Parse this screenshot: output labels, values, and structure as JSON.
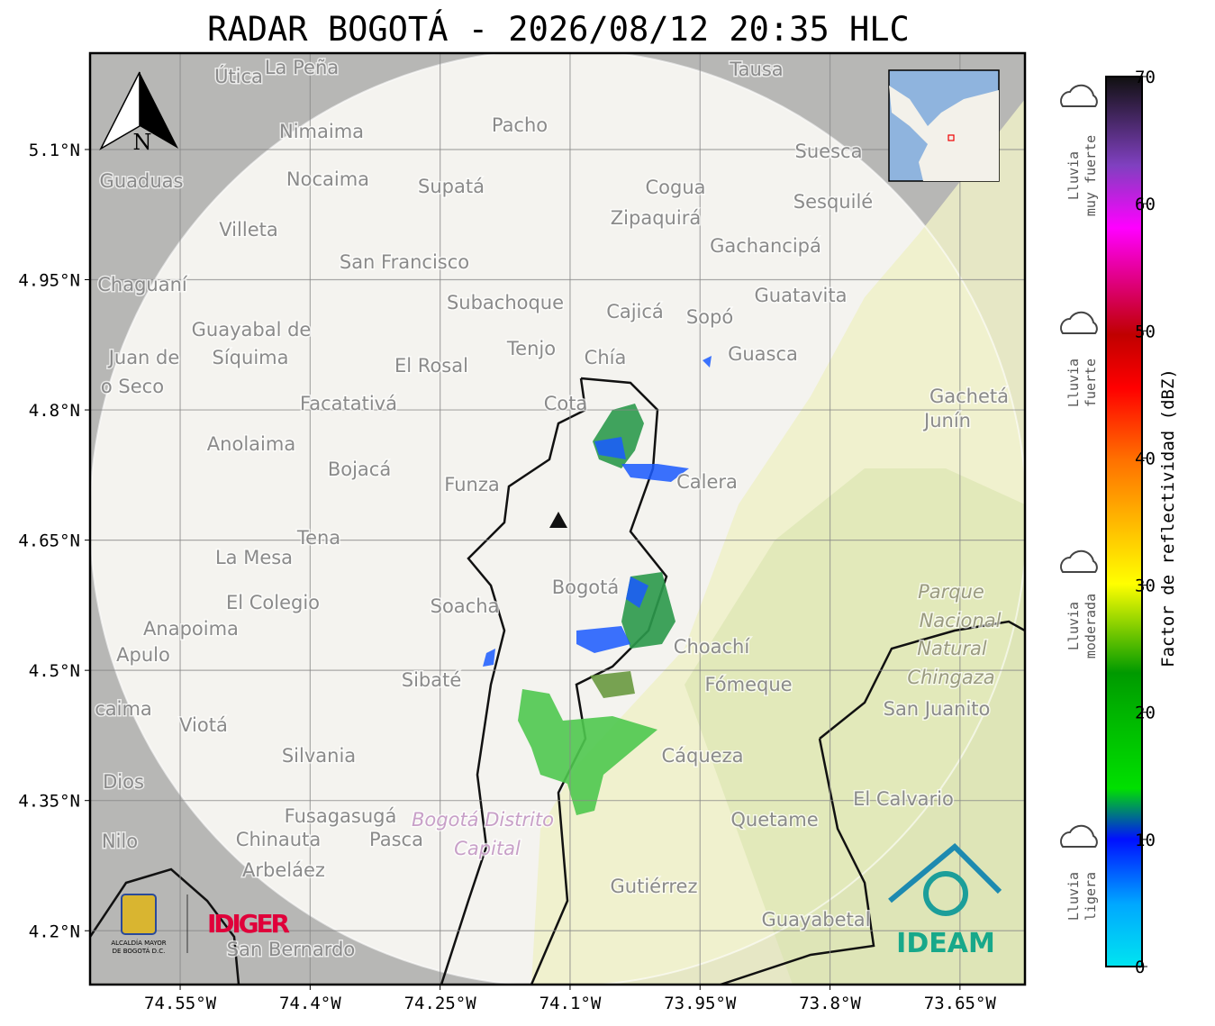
{
  "title": "RADAR BOGOTÁ - 2026/08/12 20:35 HLC",
  "map": {
    "xlim": [
      -74.654,
      -73.575
    ],
    "ylim": [
      4.138,
      5.211
    ],
    "xticks": [
      {
        "value": -74.55,
        "label": "74.55°W"
      },
      {
        "value": -74.4,
        "label": "74.4°W"
      },
      {
        "value": -74.25,
        "label": "74.25°W"
      },
      {
        "value": -74.1,
        "label": "74.1°W"
      },
      {
        "value": -73.95,
        "label": "73.95°W"
      },
      {
        "value": -73.8,
        "label": "73.8°W"
      },
      {
        "value": -73.65,
        "label": "73.65°W"
      }
    ],
    "yticks": [
      {
        "value": 5.1,
        "label": "5.1°N"
      },
      {
        "value": 4.95,
        "label": "4.95°N"
      },
      {
        "value": 4.8,
        "label": "4.8°N"
      },
      {
        "value": 4.65,
        "label": "4.65°N"
      },
      {
        "value": 4.5,
        "label": "4.5°N"
      },
      {
        "value": 4.35,
        "label": "4.35°N"
      },
      {
        "value": 4.2,
        "label": "4.2°N"
      }
    ],
    "grid": true,
    "places": [
      "Útica",
      "La Peña",
      "Tausa",
      "Pacho",
      "Nimaima",
      "Guaduas",
      "Nocaima",
      "Supatá",
      "Cogua",
      "Suesca",
      "Sesquilé",
      "Zipaquirá",
      "Villeta",
      "Gachancipá",
      "San Francisco",
      "Chaguaní",
      "Guatavita",
      "Subachoque",
      "Cajicá",
      "Sopó",
      "Guayabal de",
      "Síquima",
      "Juan de",
      "o Seco",
      "Tenjo",
      "Chía",
      "El Rosal",
      "Guasca",
      "Facatativá",
      "Cota",
      "Gachetá",
      "Junín",
      "Anolaima",
      "Bojacá",
      "Funza",
      "Calera",
      "Tena",
      "La Mesa",
      "El Colegio",
      "Soacha",
      "Bogotá",
      "Anapoima",
      "Apulo",
      "Parque",
      "Nacional",
      "Natural",
      "Chingaza",
      "Choachí",
      "Sibaté",
      "Fómeque",
      "San Juanito",
      "caima",
      "Viotá",
      "Silvania",
      "Cáqueza",
      "Dios",
      "El Calvario",
      "Fusagasugá",
      "Bogotá Distrito",
      "Capital",
      "Quetame",
      "Nilo",
      "Chinauta",
      "Pasca",
      "Arbeláez",
      "Gutiérrez",
      "Guayabetal",
      "San Bernardo"
    ],
    "north": "N",
    "logos": {
      "idiger": "IDIGER",
      "alcaldia": [
        "ALCALDÍA MAYOR",
        "DE BOGOTÁ D.C."
      ],
      "ideam": "IDEAM"
    }
  },
  "colorbar": {
    "label": "Factor de reflectividad (dBZ)",
    "lim": [
      0,
      70
    ],
    "ticks": [
      0,
      10,
      20,
      30,
      40,
      50,
      60,
      70
    ],
    "levels": [
      [
        "Lluvia",
        "muy fuerte"
      ],
      [
        "Lluvia",
        "fuerte"
      ],
      [
        "Lluvia",
        "moderada"
      ],
      [
        "Lluvia",
        "ligera"
      ]
    ]
  }
}
